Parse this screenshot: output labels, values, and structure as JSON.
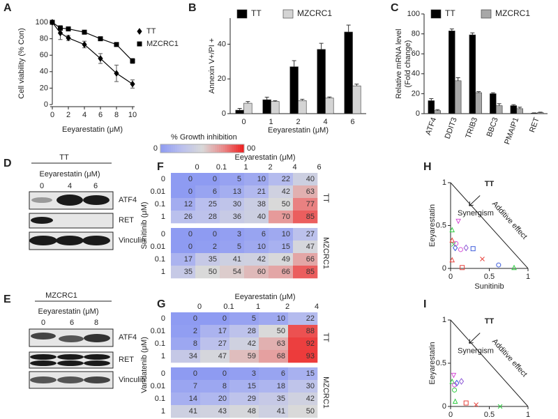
{
  "chart_data": [
    {
      "type": "line",
      "panel": "A",
      "xlabel": "Eeyarestatin (μM)",
      "ylabel": "Cell viability (% Con)",
      "x": [
        0,
        1,
        2,
        4,
        6,
        8,
        10
      ],
      "xlim": [
        0,
        10
      ],
      "xticks": [
        0,
        2,
        4,
        6,
        8,
        10
      ],
      "ylim": [
        0,
        100
      ],
      "yticks": [
        0,
        20,
        40,
        60,
        80,
        100
      ],
      "series": [
        {
          "name": "TT",
          "marker": "diamond",
          "color": "#000000",
          "values": [
            100,
            87,
            81,
            73,
            56,
            38,
            25
          ],
          "errors": [
            0,
            8,
            3,
            4,
            6,
            10,
            5
          ]
        },
        {
          "name": "MZCRC1",
          "marker": "square",
          "color": "#000000",
          "values": [
            100,
            93,
            92,
            88,
            80,
            73,
            53
          ],
          "errors": [
            0,
            3,
            2,
            1,
            2,
            2,
            3
          ]
        }
      ]
    },
    {
      "type": "bar",
      "panel": "B",
      "xlabel": "Eeyarestatin (μM)",
      "ylabel": "Annexin V+/PI +",
      "categories": [
        "0",
        "1",
        "2",
        "4",
        "6"
      ],
      "ylim": [
        0,
        55
      ],
      "yticks": [
        0,
        20,
        40
      ],
      "series": [
        {
          "name": "TT",
          "color": "#000000",
          "values": [
            2,
            8,
            27,
            37,
            47
          ],
          "errors": [
            1,
            1.5,
            3.5,
            3.5,
            4
          ]
        },
        {
          "name": "MZCRC1",
          "color": "#d4d4d4",
          "values": [
            6,
            7,
            7.5,
            9,
            16
          ],
          "errors": [
            1,
            0.5,
            0.8,
            0.6,
            1
          ]
        }
      ]
    },
    {
      "type": "bar",
      "panel": "C",
      "ylabel": [
        "Relative mRNA level",
        "(Fold change)"
      ],
      "categories": [
        "ATF4",
        "DDIT3",
        "TRIB3",
        "BBC3",
        "PMAIP1",
        "RET"
      ],
      "ylim": [
        0,
        100
      ],
      "yticks": [
        0,
        20,
        40,
        60,
        80,
        100
      ],
      "series": [
        {
          "name": "TT",
          "color": "#000000",
          "values": [
            13,
            83,
            79,
            20,
            8,
            0.5
          ],
          "errors": [
            2,
            2,
            2,
            1,
            1,
            0.3
          ]
        },
        {
          "name": "MZCRC1",
          "color": "#a8a8a8",
          "values": [
            3,
            33,
            21,
            8,
            5,
            1
          ],
          "errors": [
            1,
            3,
            1,
            2,
            1.5,
            0.5
          ]
        }
      ]
    },
    {
      "type": "heatmap",
      "panel": "F",
      "xlabel": "Eeyarestatin (μM)",
      "ylabel": "Sunitinib (μM)",
      "columns": [
        "0",
        "0.1",
        "1",
        "2",
        "4",
        "6"
      ],
      "rows": [
        "0",
        "0.01",
        "0.1",
        "1"
      ],
      "groups": [
        {
          "name": "TT",
          "values": [
            [
              0,
              0,
              5,
              10,
              22,
              40
            ],
            [
              0,
              6,
              13,
              21,
              42,
              63
            ],
            [
              12,
              25,
              30,
              38,
              50,
              77
            ],
            [
              26,
              28,
              36,
              40,
              70,
              85
            ]
          ]
        },
        {
          "name": "MZCRC1",
          "values": [
            [
              0,
              0,
              3,
              6,
              10,
              27
            ],
            [
              0,
              2,
              5,
              10,
              15,
              47
            ],
            [
              17,
              35,
              41,
              42,
              49,
              66
            ],
            [
              35,
              50,
              54,
              60,
              66,
              85
            ]
          ]
        }
      ]
    },
    {
      "type": "heatmap",
      "panel": "G",
      "xlabel": "Eeyarestatin (μM)",
      "ylabel": "Vandatenib (μM)",
      "columns": [
        "0",
        "0.1",
        "1",
        "2",
        "4"
      ],
      "rows": [
        "0",
        "0.01",
        "0.1",
        "1"
      ],
      "groups": [
        {
          "name": "TT",
          "values": [
            [
              0,
              0,
              5,
              10,
              22
            ],
            [
              2,
              17,
              28,
              50,
              88
            ],
            [
              8,
              27,
              42,
              63,
              92
            ],
            [
              34,
              47,
              59,
              68,
              93
            ]
          ]
        },
        {
          "name": "MZCRC1",
          "values": [
            [
              0,
              0,
              3,
              6,
              15
            ],
            [
              7,
              8,
              15,
              18,
              30
            ],
            [
              14,
              20,
              29,
              35,
              42
            ],
            [
              41,
              43,
              48,
              41,
              50
            ]
          ]
        }
      ]
    },
    {
      "type": "scatter",
      "panel": "H",
      "title": "TT",
      "xlabel": "Sunitinib",
      "ylabel": "Eeyarestatin",
      "annotations": [
        "Synergism",
        "Additive effect"
      ],
      "xlim": [
        0,
        1
      ],
      "ylim": [
        0,
        1
      ],
      "xticks": [
        0,
        0.5,
        1
      ],
      "yticks": [
        0,
        0.5,
        1
      ],
      "x": [
        0.02,
        0.02,
        0.1,
        0.04,
        0.06,
        0.07,
        0.13,
        0.2,
        0.29,
        0.41,
        0.62,
        0.82,
        0.15,
        0.02
      ],
      "y": [
        0.45,
        0.33,
        0.55,
        0.28,
        0.24,
        0.29,
        0.22,
        0.24,
        0.23,
        0.11,
        0.04,
        0.01,
        0.01,
        0.1
      ],
      "colors": [
        "#2ecc40",
        "#e8403a",
        "#d64fd6",
        "#2ecc40",
        "#3b5bdb",
        "#d64fd6",
        "#d64fd6",
        "#8e5bd6",
        "#3b5bdb",
        "#e8403a",
        "#3b5bdb",
        "#2ecc40",
        "#e8403a",
        "#e8403a"
      ],
      "markers": [
        "triangle",
        "triangle",
        "triangle-down",
        "x",
        "diamond",
        "circle",
        "circle",
        "diamond",
        "square",
        "x",
        "circle",
        "triangle",
        "square",
        "triangle"
      ]
    },
    {
      "type": "scatter",
      "panel": "I",
      "title": "TT",
      "xlabel": "Vandetanib",
      "ylabel": "Eeyarestatin",
      "annotations": [
        "Synergism",
        "Additive effect"
      ],
      "xlim": [
        0,
        1
      ],
      "ylim": [
        0,
        1
      ],
      "xticks": [
        0,
        0.5,
        1
      ],
      "yticks": [
        0,
        0.5,
        1
      ],
      "x": [
        0.04,
        0.02,
        0.14,
        0.08,
        0.05,
        0.05,
        0.2,
        0.33,
        0.64,
        0.06
      ],
      "y": [
        0.36,
        0.29,
        0.29,
        0.27,
        0.25,
        0.19,
        0.04,
        0.02,
        0,
        0.06
      ],
      "colors": [
        "#d64fd6",
        "#2ecc40",
        "#8e5bd6",
        "#3b5bdb",
        "#d64fd6",
        "#2ecc40",
        "#e8403a",
        "#e8403a",
        "#2ecc40",
        "#2ecc40"
      ],
      "markers": [
        "triangle-down",
        "triangle",
        "diamond",
        "diamond",
        "circle",
        "circle",
        "square",
        "x",
        "x",
        "triangle"
      ]
    }
  ],
  "colorbar": {
    "label": "% Growth inhibition",
    "lim": [
      0,
      100
    ],
    "ticks": [
      0,
      {
        "value": 100,
        "label": "00"
      }
    ],
    "colors": [
      "#8e9bf2",
      "#b9bfee",
      "#d9d9d9",
      "#e98a8a",
      "#ee1c1c"
    ]
  },
  "blots": [
    {
      "panel": "D",
      "cell_line": "TT",
      "treatment": "Eeyarestatin (μM)",
      "lanes": [
        "0",
        "4",
        "6"
      ],
      "proteins": [
        "ATF4",
        "RET",
        "Vinculin"
      ]
    },
    {
      "panel": "E",
      "cell_line": "MZCRC1",
      "treatment": "Eeyarestatin (μM)",
      "lanes": [
        "0",
        "6",
        "8"
      ],
      "proteins": [
        "ATF4",
        "RET",
        "Vinculin"
      ]
    }
  ]
}
